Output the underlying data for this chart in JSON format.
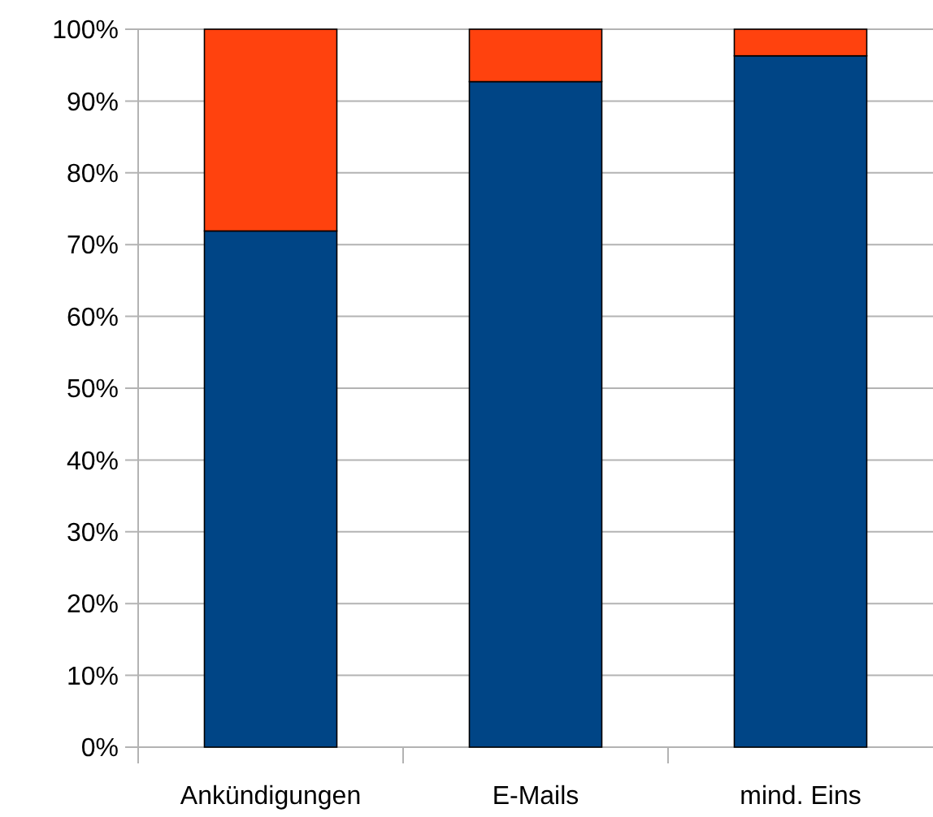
{
  "chart_data": {
    "type": "bar",
    "stacked": true,
    "categories": [
      "Ankündigungen",
      "E-Mails",
      "mind. Eins"
    ],
    "series": [
      {
        "color": "#004586",
        "values": [
          71.9,
          92.7,
          96.3
        ]
      },
      {
        "color": "#ff420e",
        "values": [
          28.1,
          7.3,
          3.7
        ]
      }
    ],
    "ylim": [
      0,
      100
    ],
    "yticks": [
      {
        "value": 0,
        "label": "0%"
      },
      {
        "value": 10,
        "label": "10%"
      },
      {
        "value": 20,
        "label": "20%"
      },
      {
        "value": 30,
        "label": "30%"
      },
      {
        "value": 40,
        "label": "40%"
      },
      {
        "value": 50,
        "label": "50%"
      },
      {
        "value": 60,
        "label": "60%"
      },
      {
        "value": 70,
        "label": "70%"
      },
      {
        "value": 80,
        "label": "80%"
      },
      {
        "value": 90,
        "label": "90%"
      },
      {
        "value": 100,
        "label": "100%"
      }
    ],
    "grid": "y"
  }
}
